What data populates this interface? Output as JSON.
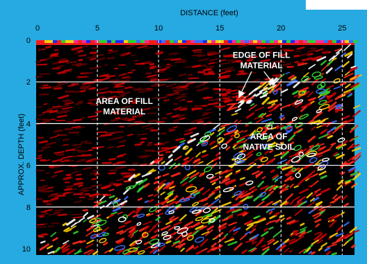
{
  "chart_data": {
    "type": "heatmap",
    "xlabel": "DISTANCE (feet)",
    "ylabel": "APPROX. DEPTH (feet)",
    "xlim": [
      0,
      26
    ],
    "ylim": [
      0,
      10.3
    ],
    "x_ticks": [
      0,
      5,
      10,
      15,
      20,
      25
    ],
    "y_ticks": [
      0,
      2,
      4,
      6,
      8,
      10
    ],
    "x_tick_labels": [
      "0",
      "5",
      "10",
      "15",
      "20",
      "25"
    ],
    "y_tick_labels": [
      "0",
      "2",
      "4",
      "6",
      "8",
      "10"
    ],
    "vertical_gridlines_x": [
      5,
      10,
      15,
      20,
      25
    ],
    "horizontal_gridlines_y": [
      2,
      4,
      6,
      8
    ],
    "colormap": [
      "#000000",
      "#5a0000",
      "#c80000",
      "#ff2a1a",
      "#ffd000",
      "#2fd12f",
      "#3a6cff",
      "#ffffff"
    ],
    "annotations": [
      {
        "lines": [
          "EDGE OF FILL",
          "MATERIAL"
        ],
        "x": 18.4,
        "y": 0.85
      },
      {
        "lines": [
          "AREA OF FILL",
          "MATERIAL"
        ],
        "x": 7.2,
        "y": 3.05
      },
      {
        "lines": [
          "AREA OF",
          "NATIVE SOIL"
        ],
        "x": 19.0,
        "y": 4.75
      }
    ],
    "arrows": [
      {
        "from": [
          17.6,
          1.5
        ],
        "to": [
          16.6,
          2.7
        ]
      },
      {
        "from": [
          18.6,
          1.5
        ],
        "to": [
          19.4,
          2.1
        ]
      }
    ],
    "reflector_line": {
      "x": [
        0,
        4,
        8,
        12,
        15,
        18,
        21,
        26
      ],
      "y": [
        10,
        8.6,
        6.9,
        5.2,
        3.9,
        2.7,
        1.7,
        0.7
      ]
    }
  }
}
